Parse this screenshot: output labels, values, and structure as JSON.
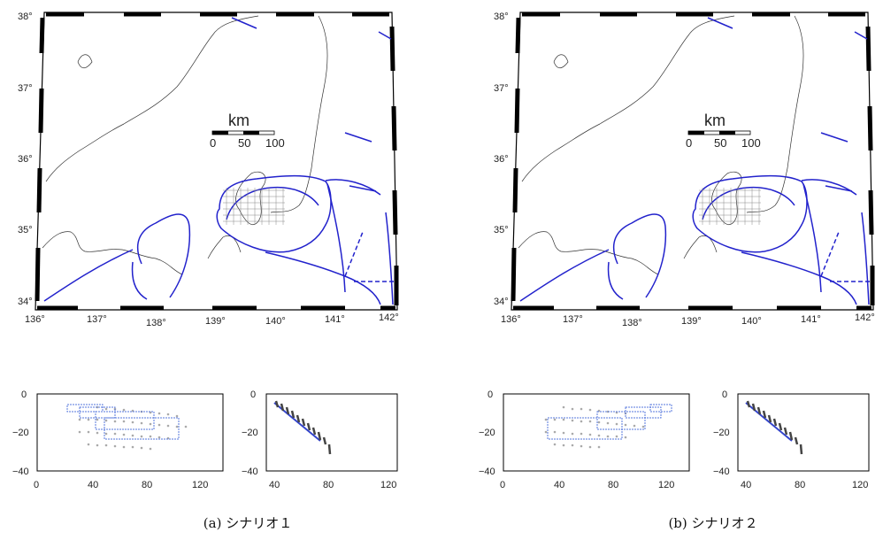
{
  "panels": [
    {
      "id": "a",
      "caption": "(a) シナリオ１",
      "map": {
        "lat_labels": [
          "38°",
          "37°",
          "36°",
          "35°",
          "34°"
        ],
        "lon_labels": [
          "136°",
          "137°",
          "138°",
          "139°",
          "140°",
          "141°",
          "142°"
        ],
        "scale": {
          "unit": "km",
          "ticks": [
            "0",
            "50",
            "100"
          ]
        }
      },
      "section_left": {
        "yticks": [
          "0",
          "−20",
          "−40"
        ],
        "xticks": [
          "0",
          "40",
          "80",
          "120"
        ]
      },
      "section_right": {
        "yticks": [
          "0",
          "−20",
          "−40"
        ],
        "xticks": [
          "40",
          "80",
          "120"
        ]
      }
    },
    {
      "id": "b",
      "caption": "(b) シナリオ２",
      "map": {
        "lat_labels": [
          "38°",
          "37°",
          "36°",
          "35°",
          "34°"
        ],
        "lon_labels": [
          "136°",
          "137°",
          "138°",
          "139°",
          "140°",
          "141°",
          "142°"
        ],
        "scale": {
          "unit": "km",
          "ticks": [
            "0",
            "50",
            "100"
          ]
        }
      },
      "section_left": {
        "yticks": [
          "0",
          "−20",
          "−40"
        ],
        "xticks": [
          "0",
          "40",
          "80",
          "120"
        ]
      },
      "section_right": {
        "yticks": [
          "0",
          "−20",
          "−40"
        ],
        "xticks": [
          "40",
          "80",
          "120"
        ]
      }
    }
  ],
  "colors": {
    "fault_lines": "#2222cc",
    "rectangles": "#5577dd",
    "grid_points": "#888888",
    "coast": "#333333"
  }
}
